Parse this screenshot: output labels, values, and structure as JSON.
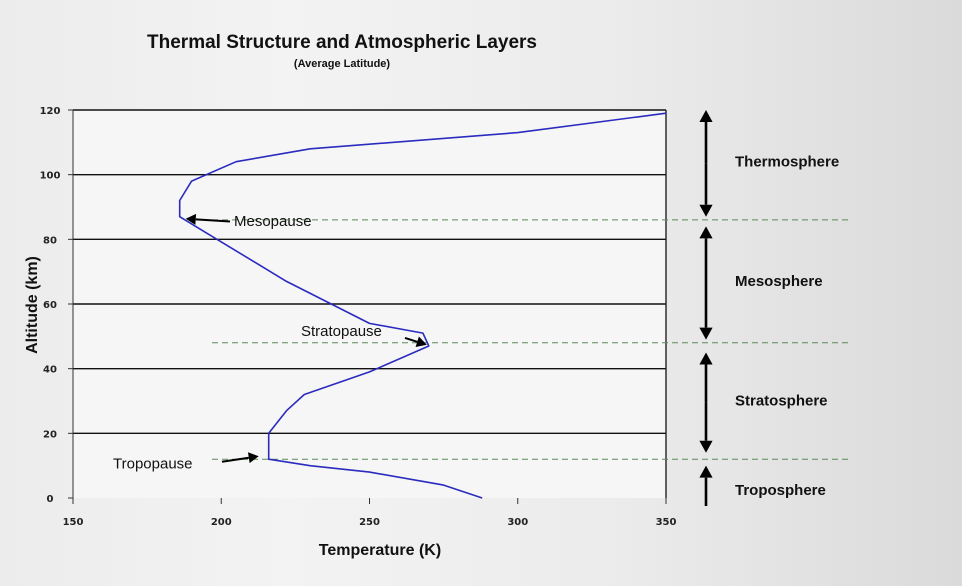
{
  "chart_data": {
    "type": "line",
    "title": "Thermal Structure and Atmospheric Layers",
    "subtitle": "(Average Latitude)",
    "xlabel": "Temperature (K)",
    "ylabel": "Altitude (km)",
    "xlim": [
      150,
      350
    ],
    "ylim": [
      0,
      120
    ],
    "xticks": [
      "150",
      "200",
      "250",
      "300",
      "350"
    ],
    "yticks": [
      "0",
      "20",
      "40",
      "60",
      "80",
      "100",
      "120"
    ],
    "grid": "horizontal",
    "series": [
      {
        "values_xy": [
          [
            288,
            0
          ],
          [
            275,
            4
          ],
          [
            250,
            8
          ],
          [
            230,
            10
          ],
          [
            216,
            12
          ],
          [
            216,
            20
          ],
          [
            222,
            27
          ],
          [
            228,
            32
          ],
          [
            250,
            39
          ],
          [
            270,
            47
          ],
          [
            268,
            51
          ],
          [
            250,
            54
          ],
          [
            222,
            67
          ],
          [
            195,
            82
          ],
          [
            186,
            87
          ],
          [
            186,
            92
          ],
          [
            190,
            98
          ],
          [
            205,
            104
          ],
          [
            230,
            108
          ],
          [
            300,
            113
          ],
          [
            350,
            119
          ]
        ],
        "color": "#2b2bbf"
      }
    ],
    "annotations": [
      {
        "text": "Mesopause",
        "arrow_to": [
          186,
          87
        ]
      },
      {
        "text": "Stratopause",
        "arrow_to": [
          270,
          48
        ]
      },
      {
        "text": "Tropopause",
        "arrow_to": [
          216,
          12
        ]
      }
    ],
    "boundaries": [
      12,
      48,
      86
    ],
    "layers": [
      {
        "name": "Thermosphere",
        "from": 87,
        "to": 120
      },
      {
        "name": "Mesosphere",
        "from": 49,
        "to": 84
      },
      {
        "name": "Stratosphere",
        "from": 14,
        "to": 45
      },
      {
        "name": "Troposphere",
        "from": 0,
        "to": 10
      }
    ]
  }
}
